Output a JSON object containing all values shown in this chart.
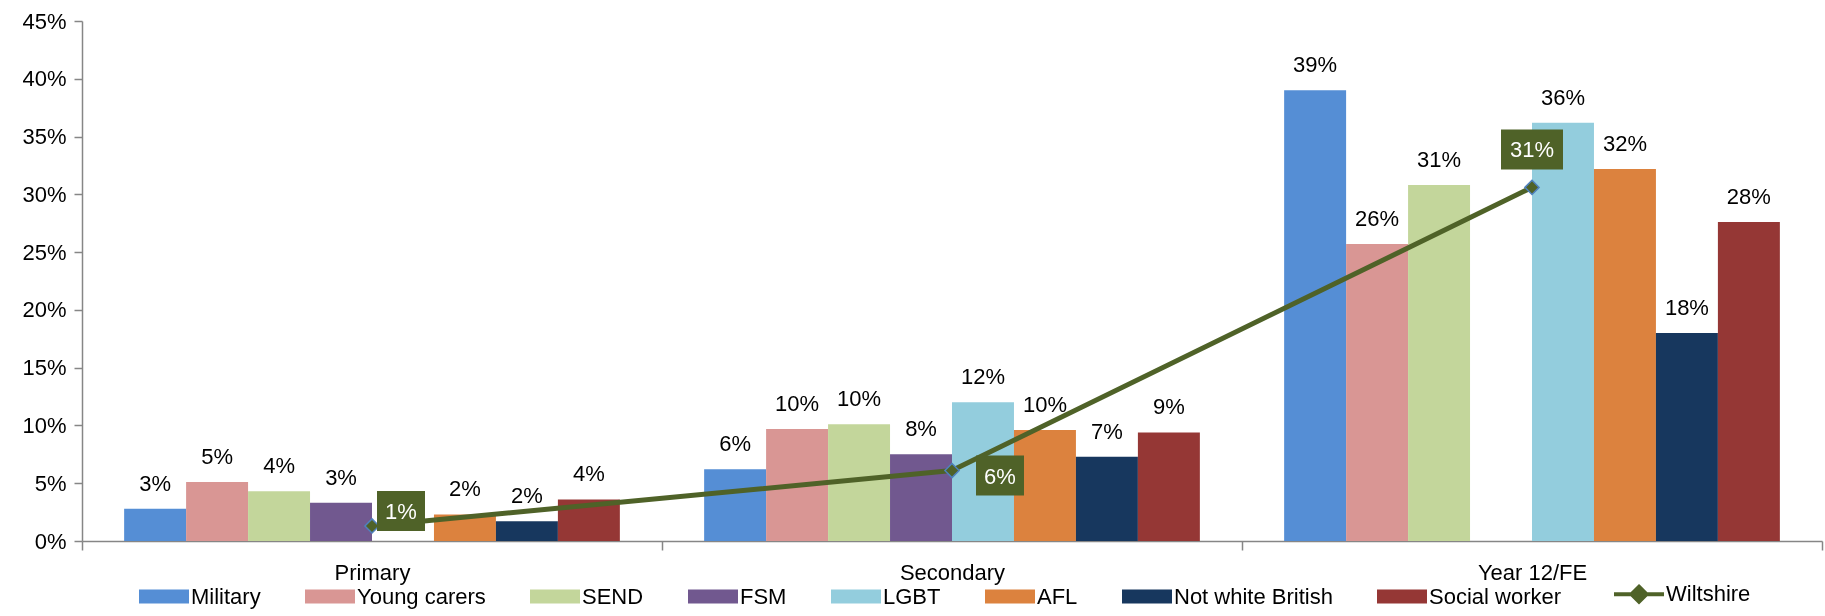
{
  "chart_data": {
    "type": "bar",
    "categories": [
      "Primary",
      "Secondary",
      "Year 12/FE"
    ],
    "series": [
      {
        "name": "Military",
        "color": "#558ed5",
        "values": [
          2.8,
          6.2,
          39.0
        ],
        "value_labels": [
          "3%",
          "6%",
          "39%"
        ]
      },
      {
        "name": "Young carers",
        "color": "#d99694",
        "values": [
          5.1,
          9.7,
          25.7
        ],
        "value_labels": [
          "5%",
          "10%",
          "26%"
        ]
      },
      {
        "name": "SEND",
        "color": "#c3d69b",
        "values": [
          4.3,
          10.1,
          30.8
        ],
        "value_labels": [
          "4%",
          "10%",
          "31%"
        ]
      },
      {
        "name": "FSM",
        "color": "#71588f",
        "values": [
          3.3,
          7.5,
          null
        ],
        "value_labels": [
          "3%",
          "8%",
          null
        ]
      },
      {
        "name": "LGBT",
        "color": "#93cddd",
        "values": [
          null,
          12.0,
          36.2
        ],
        "value_labels": [
          null,
          "12%",
          "36%"
        ]
      },
      {
        "name": "AFL",
        "color": "#dc823e",
        "values": [
          2.3,
          9.6,
          32.2
        ],
        "value_labels": [
          "2%",
          "10%",
          "32%"
        ]
      },
      {
        "name": "Not white British",
        "color": "#17375e",
        "values": [
          1.7,
          7.3,
          18.0
        ],
        "value_labels": [
          "2%",
          "7%",
          "18%"
        ]
      },
      {
        "name": "Social worker",
        "color": "#953735",
        "values": [
          3.6,
          9.4,
          27.6
        ],
        "value_labels": [
          "4%",
          "9%",
          "28%"
        ]
      },
      {
        "name": "Wiltshire",
        "type": "line",
        "color": "#4f6228",
        "values": [
          1.3,
          6.1,
          30.6
        ],
        "value_labels": [
          "1%",
          "6%",
          "31%"
        ]
      }
    ],
    "ylim": [
      0,
      45
    ],
    "yticks": [
      {
        "value": 0,
        "label": "0%"
      },
      {
        "value": 5,
        "label": "5%"
      },
      {
        "value": 10,
        "label": "10%"
      },
      {
        "value": 15,
        "label": "15%"
      },
      {
        "value": 20,
        "label": "20%"
      },
      {
        "value": 25,
        "label": "25%"
      },
      {
        "value": 30,
        "label": "30%"
      },
      {
        "value": 35,
        "label": "35%"
      },
      {
        "value": 40,
        "label": "40%"
      },
      {
        "value": 45,
        "label": "45%"
      }
    ],
    "grid": false,
    "legend": "bottom",
    "marker": "diamond",
    "line_style": "solid"
  }
}
